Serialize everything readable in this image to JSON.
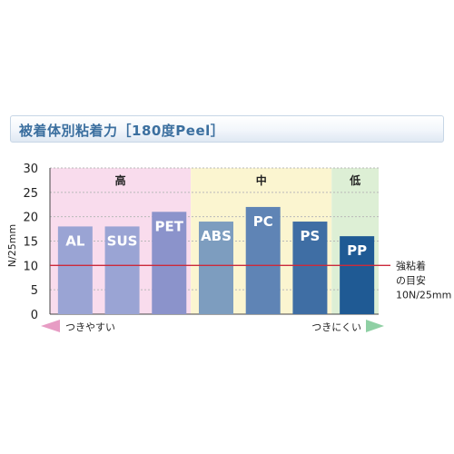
{
  "title": "被着体別粘着力［180度Peel］",
  "chart_data": {
    "type": "bar",
    "title": "被着体別粘着力［180度Peel］",
    "ylabel": "N/25mm",
    "ylim": [
      0,
      30
    ],
    "yticks": [
      0,
      5,
      10,
      15,
      20,
      25,
      30
    ],
    "grid": "dashed horizontal",
    "categories": [
      "AL",
      "SUS",
      "PET",
      "ABS",
      "PC",
      "PS",
      "PP"
    ],
    "values": [
      18,
      18,
      21,
      19,
      22,
      19,
      16
    ],
    "bar_colors": [
      "#9aa4d4",
      "#9aa4d4",
      "#8b93cb",
      "#7d9dbf",
      "#5f84b5",
      "#3f6ea4",
      "#1f5a94"
    ],
    "bands": [
      {
        "label": "高",
        "from_category": "AL",
        "to_category": "PET",
        "color": "#f9dced"
      },
      {
        "label": "中",
        "from_category": "ABS",
        "to_category": "PS",
        "color": "#fbf5d0"
      },
      {
        "label": "低",
        "from_category": "PP",
        "to_category": "PP",
        "color": "#ddefd5"
      }
    ],
    "reference_line": {
      "value": 10,
      "color": "#cc2a3b",
      "label_lines": [
        "強粘着",
        "の目安",
        "10N/25mm"
      ]
    },
    "arrows": {
      "left_label": "つきやすい",
      "right_label": "つきにくい",
      "left_color": "#e79cc4",
      "right_color": "#8fd0a4"
    }
  }
}
